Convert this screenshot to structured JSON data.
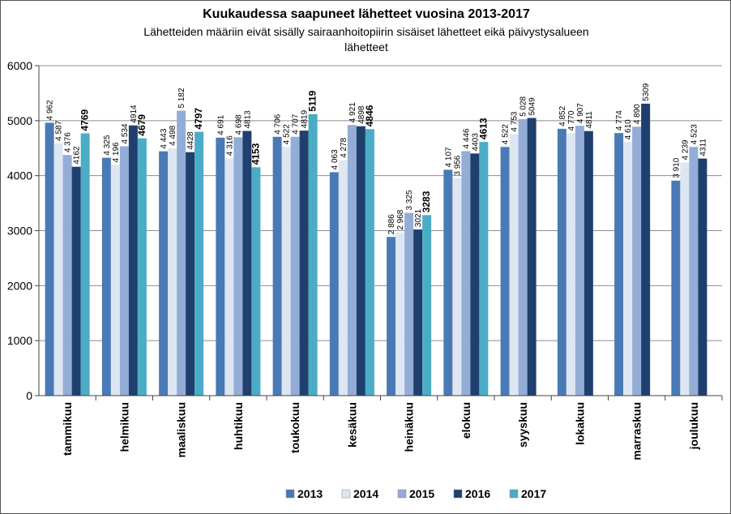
{
  "chart_data": {
    "type": "bar",
    "title": "Kuukaudessa saapuneet lähetteet vuosina 2013-2017",
    "subtitle_lines": [
      "Lähetteiden määriin eivät sisälly sairaanhoitopiirin sisäiset lähetteet eikä päivystysalueen",
      "lähetteet"
    ],
    "xlabel": "",
    "ylabel": "",
    "ylim": [
      0,
      6000
    ],
    "yticks": [
      "0",
      "1000",
      "2000",
      "3000",
      "4000",
      "5000",
      "6000"
    ],
    "grid": true,
    "legend_position": "bottom",
    "categories": [
      "tammikuu",
      "helmikuu",
      "maaliskuu",
      "huhtikuu",
      "toukokuu",
      "kesäkuu",
      "heinäkuu",
      "elokuu",
      "syyskuu",
      "lokakuu",
      "marraskuu",
      "joulukuu"
    ],
    "series": [
      {
        "name": "2013",
        "color": "#4a7ab5",
        "values": [
          4962,
          4325,
          4443,
          4691,
          4706,
          4063,
          2886,
          4107,
          4522,
          4852,
          4774,
          3910
        ],
        "labels": [
          "4 962",
          "4 325",
          "4 443",
          "4 691",
          "4 706",
          "4 063",
          "2 886",
          "4 107",
          "4 522",
          "4 852",
          "4 774",
          "3 910"
        ]
      },
      {
        "name": "2014",
        "color": "#dde6f2",
        "values": [
          4587,
          4196,
          4498,
          4316,
          4522,
          4278,
          2968,
          3956,
          4753,
          4770,
          4610,
          4239
        ],
        "labels": [
          "4 587",
          "4 196",
          "4 498",
          "4 316",
          "4 522",
          "4 278",
          "2 968",
          "3 956",
          "4 753",
          "4 770",
          "4 610",
          "4 239"
        ]
      },
      {
        "name": "2015",
        "color": "#93add6",
        "values": [
          4376,
          4534,
          5182,
          4698,
          4707,
          4921,
          3325,
          4446,
          5028,
          4907,
          4890,
          4523
        ],
        "labels": [
          "4 376",
          "4 534",
          "5 182",
          "4 698",
          "4 707",
          "4 921",
          "3 325",
          "4 446",
          "5 028",
          "4 907",
          "4 890",
          "4 523"
        ]
      },
      {
        "name": "2016",
        "color": "#1f3f6e",
        "values": [
          4162,
          4914,
          4428,
          4813,
          4819,
          4898,
          3021,
          4403,
          5049,
          4811,
          5309,
          4311
        ],
        "labels": [
          "4162",
          "4914",
          "4428",
          "4813",
          "4819",
          "4898",
          "3021",
          "4403",
          "5049",
          "4811",
          "5309",
          "4311"
        ]
      },
      {
        "name": "2017",
        "color": "#4bacc6",
        "values": [
          4769,
          4679,
          4797,
          4153,
          5119,
          4846,
          3283,
          4613,
          null,
          null,
          null,
          null
        ],
        "labels": [
          "4769",
          "4679",
          "4797",
          "4153",
          "5119",
          "4846",
          "3283",
          "4613",
          null,
          null,
          null,
          null
        ]
      }
    ]
  }
}
